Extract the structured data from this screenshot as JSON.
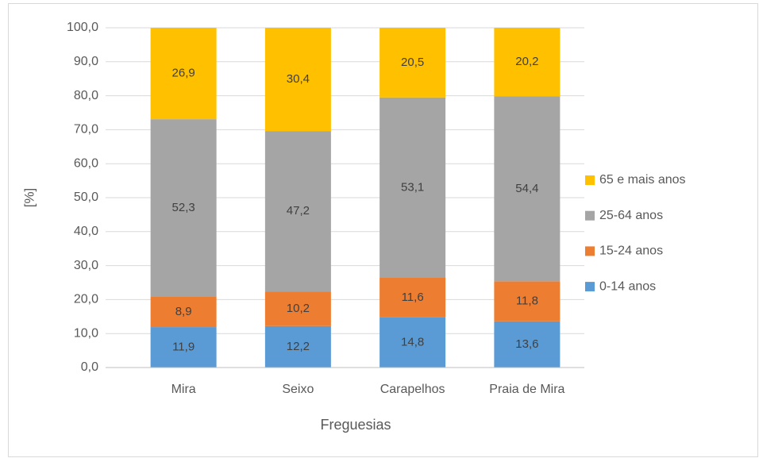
{
  "chart_data": {
    "type": "stacked_bar",
    "categories": [
      "Mira",
      "Seixo",
      "Carapelhos",
      "Praia de Mira"
    ],
    "series": [
      {
        "name": "0-14 anos",
        "color": "#5b9bd5",
        "values": [
          11.9,
          12.2,
          14.8,
          13.6
        ],
        "value_labels": [
          "11,9",
          "12,2",
          "14,8",
          "13,6"
        ]
      },
      {
        "name": "15-24 anos",
        "color": "#ed7d31",
        "values": [
          8.9,
          10.2,
          11.6,
          11.8
        ],
        "value_labels": [
          "8,9",
          "10,2",
          "11,6",
          "11,8"
        ]
      },
      {
        "name": "25-64 anos",
        "color": "#a5a5a5",
        "values": [
          52.3,
          47.2,
          53.1,
          54.4
        ],
        "value_labels": [
          "52,3",
          "47,2",
          "53,1",
          "54,4"
        ]
      },
      {
        "name": "65 e mais anos",
        "color": "#ffc000",
        "values": [
          26.9,
          30.4,
          20.5,
          20.2
        ],
        "value_labels": [
          "26,9",
          "30,4",
          "20,5",
          "20,2"
        ]
      }
    ],
    "ylabel": "[%]",
    "xlabel": "Freguesias",
    "ylim": [
      0,
      100
    ],
    "yticks": [
      {
        "value": 0,
        "label": "0,0"
      },
      {
        "value": 10,
        "label": "10,0"
      },
      {
        "value": 20,
        "label": "20,0"
      },
      {
        "value": 30,
        "label": "30,0"
      },
      {
        "value": 40,
        "label": "40,0"
      },
      {
        "value": 50,
        "label": "50,0"
      },
      {
        "value": 60,
        "label": "60,0"
      },
      {
        "value": 70,
        "label": "70,0"
      },
      {
        "value": 80,
        "label": "80,0"
      },
      {
        "value": 90,
        "label": "90,0"
      },
      {
        "value": 100,
        "label": "100,0"
      }
    ],
    "grid": true,
    "legend": "right"
  }
}
